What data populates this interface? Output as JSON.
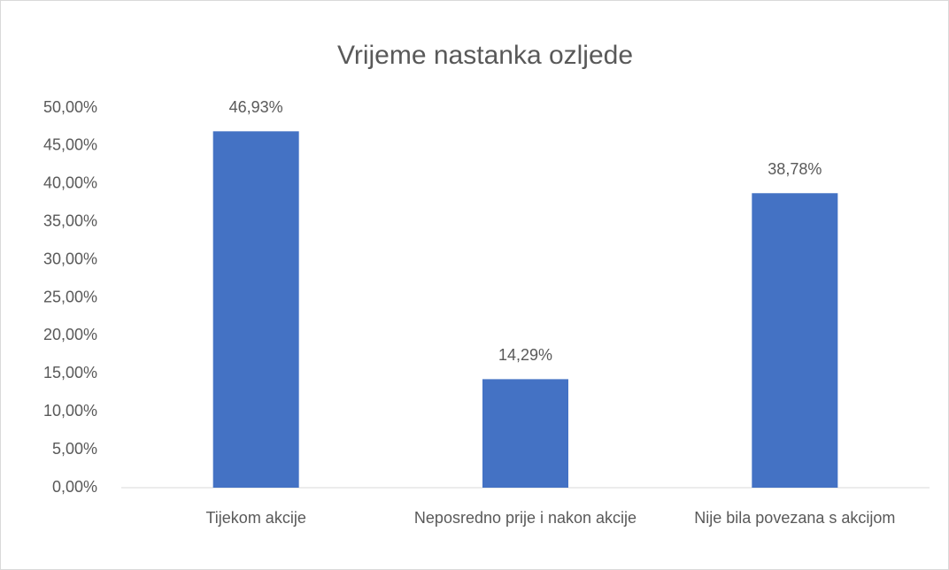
{
  "chart_data": {
    "type": "bar",
    "title": "Vrijeme nastanka ozljede",
    "categories": [
      "Tijekom akcije",
      "Neposredno prije i nakon akcije",
      "Nije bila povezana s akcijom"
    ],
    "values": [
      46.93,
      14.29,
      38.78
    ],
    "value_labels": [
      "46,93%",
      "14,29%",
      "38,78%"
    ],
    "color": "#4472c4",
    "ylim": [
      0,
      50
    ],
    "yticks": [
      {
        "value": 0,
        "label": "0,00%"
      },
      {
        "value": 5,
        "label": "5,00%"
      },
      {
        "value": 10,
        "label": "10,00%"
      },
      {
        "value": 15,
        "label": "15,00%"
      },
      {
        "value": 20,
        "label": "20,00%"
      },
      {
        "value": 25,
        "label": "25,00%"
      },
      {
        "value": 30,
        "label": "30,00%"
      },
      {
        "value": 35,
        "label": "35,00%"
      },
      {
        "value": 40,
        "label": "40,00%"
      },
      {
        "value": 45,
        "label": "45,00%"
      },
      {
        "value": 50,
        "label": "50,00%"
      }
    ],
    "grid": false
  }
}
